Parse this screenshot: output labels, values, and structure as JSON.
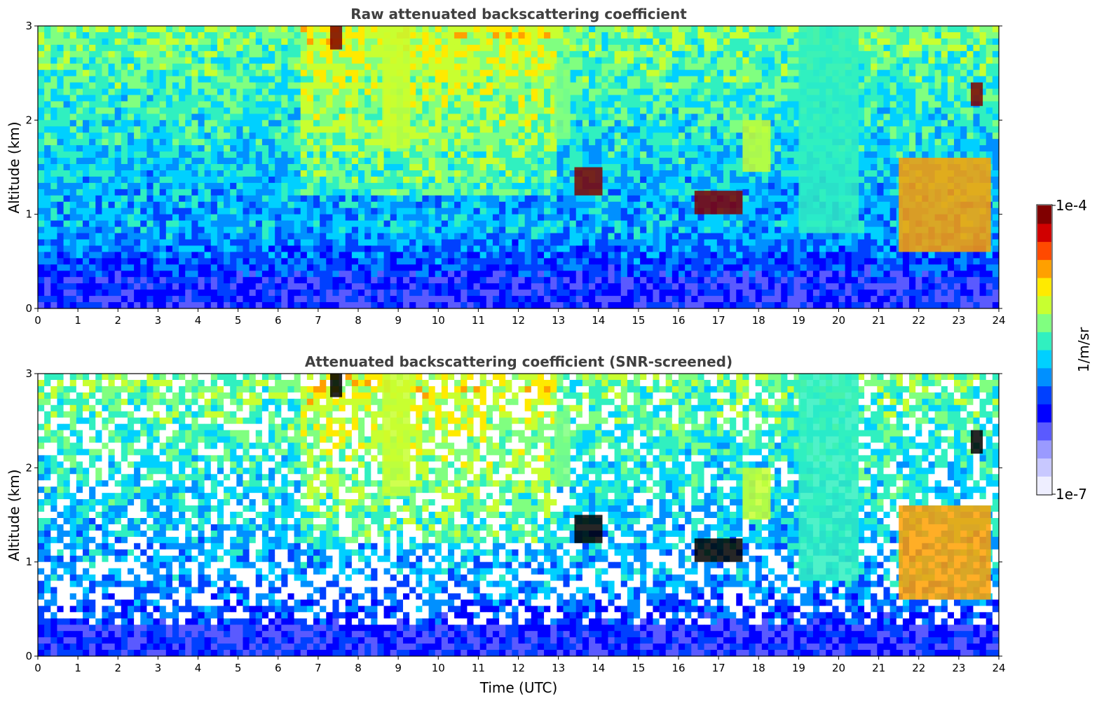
{
  "figure": {
    "colorbar": {
      "max_label": "1e-4",
      "min_label": "1e-7",
      "unit_label": "1/m/sr",
      "scale": "log",
      "colormap": "jet",
      "colors": [
        "#eeeeff",
        "#c8c8ff",
        "#9a9aff",
        "#5a5aff",
        "#0000ff",
        "#0040ff",
        "#0090ff",
        "#00d0ff",
        "#30f0c0",
        "#80ff80",
        "#c8ff30",
        "#ffea00",
        "#ffa000",
        "#ff4a00",
        "#d00000",
        "#800000"
      ]
    },
    "xlabel": "Time (UTC)"
  },
  "chart_data": [
    {
      "type": "heatmap",
      "title": "Raw attenuated backscattering coefficient",
      "xlabel": "",
      "ylabel": "Altitude (km)",
      "xlim": [
        0,
        24
      ],
      "ylim": [
        0,
        3
      ],
      "x_ticks": [
        "0",
        "1",
        "2",
        "3",
        "4",
        "5",
        "6",
        "7",
        "8",
        "9",
        "10",
        "11",
        "12",
        "13",
        "14",
        "15",
        "16",
        "17",
        "18",
        "19",
        "20",
        "21",
        "22",
        "23",
        "24"
      ],
      "y_ticks": [
        "0",
        "1",
        "2",
        "3"
      ],
      "features": [
        {
          "x": [
            8.6,
            9.3
          ],
          "y": [
            1.7,
            3.0
          ],
          "level": 0.66
        },
        {
          "x": [
            12.9,
            13.3
          ],
          "y": [
            1.8,
            2.6
          ],
          "level": 0.62
        },
        {
          "x": [
            13.4,
            14.1
          ],
          "y": [
            1.2,
            1.5
          ],
          "level": 0.98
        },
        {
          "x": [
            16.4,
            17.6
          ],
          "y": [
            1.0,
            1.25
          ],
          "level": 0.97
        },
        {
          "x": [
            17.6,
            18.3
          ],
          "y": [
            1.45,
            2.0
          ],
          "level": 0.63
        },
        {
          "x": [
            19.0,
            20.5
          ],
          "y": [
            0.8,
            3.0
          ],
          "level": 0.55
        },
        {
          "x": [
            21.5,
            23.8
          ],
          "y": [
            0.6,
            1.6
          ],
          "level": 0.78
        },
        {
          "x": [
            23.3,
            23.6
          ],
          "y": [
            2.15,
            2.4
          ],
          "level": 0.96
        },
        {
          "x": [
            7.3,
            7.6
          ],
          "y": [
            2.75,
            3.0
          ],
          "level": 0.97
        }
      ]
    },
    {
      "type": "heatmap",
      "title": "Attenuated backscattering coefficient (SNR-screened)",
      "xlabel": "Time (UTC)",
      "ylabel": "Altitude (km)",
      "xlim": [
        0,
        24
      ],
      "ylim": [
        0,
        3
      ],
      "x_ticks": [
        "0",
        "1",
        "2",
        "3",
        "4",
        "5",
        "6",
        "7",
        "8",
        "9",
        "10",
        "11",
        "12",
        "13",
        "14",
        "15",
        "16",
        "17",
        "18",
        "19",
        "20",
        "21",
        "22",
        "23",
        "24"
      ],
      "y_ticks": [
        "0",
        "1",
        "2",
        "3"
      ],
      "features": [
        {
          "x": [
            8.6,
            9.3
          ],
          "y": [
            1.7,
            3.0
          ],
          "level": 0.66
        },
        {
          "x": [
            12.9,
            13.3
          ],
          "y": [
            1.8,
            2.6
          ],
          "level": 0.62
        },
        {
          "x": [
            13.4,
            14.1
          ],
          "y": [
            1.2,
            1.5
          ],
          "level": 1.05
        },
        {
          "x": [
            16.4,
            17.6
          ],
          "y": [
            1.0,
            1.25
          ],
          "level": 1.05
        },
        {
          "x": [
            17.6,
            18.3
          ],
          "y": [
            1.45,
            2.0
          ],
          "level": 0.63
        },
        {
          "x": [
            19.0,
            20.5
          ],
          "y": [
            0.8,
            3.0
          ],
          "level": 0.55
        },
        {
          "x": [
            21.5,
            23.8
          ],
          "y": [
            0.6,
            1.6
          ],
          "level": 0.78
        },
        {
          "x": [
            23.3,
            23.6
          ],
          "y": [
            2.15,
            2.4
          ],
          "level": 1.05
        },
        {
          "x": [
            7.3,
            7.6
          ],
          "y": [
            2.75,
            3.0
          ],
          "level": 1.05
        }
      ]
    }
  ]
}
